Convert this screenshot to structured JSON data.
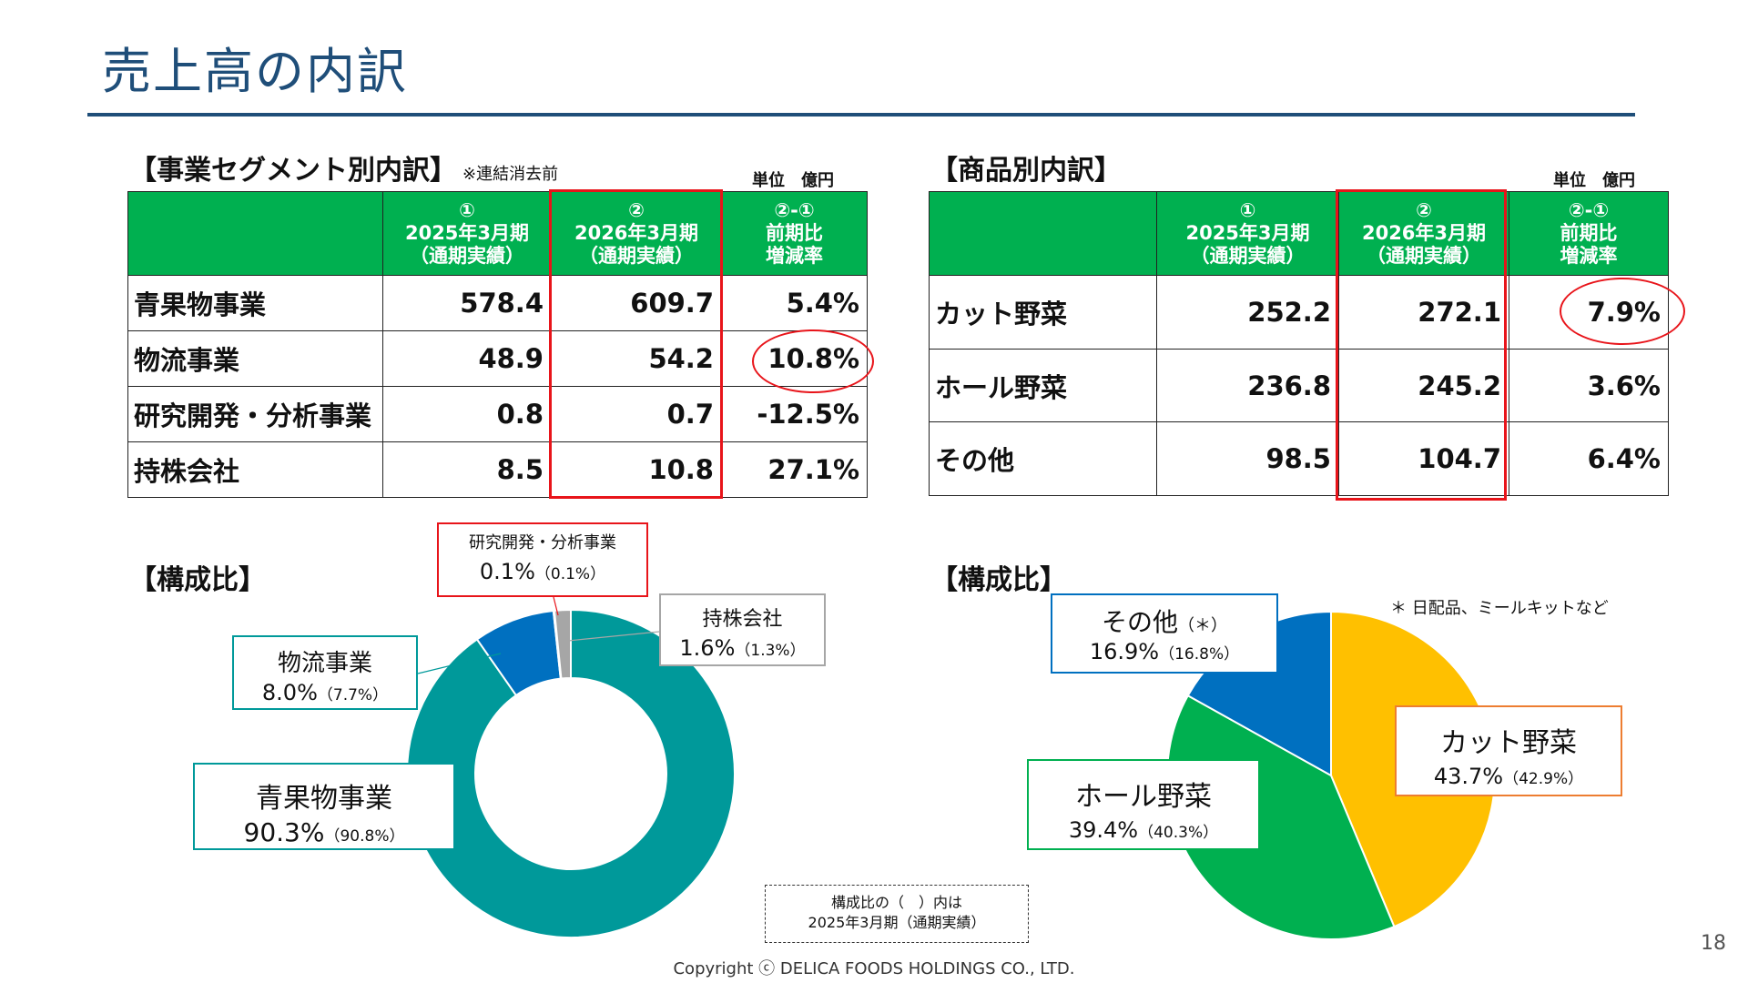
{
  "title": "売上高の内訳",
  "segment": {
    "heading": "【事業セグメント別内訳】",
    "note": "※連結消去前",
    "unit": "単位　億円",
    "columns": [
      {
        "num": "①",
        "line1": "2025年3月期",
        "line2": "（通期実績）"
      },
      {
        "num": "②",
        "line1": "2026年3月期",
        "line2": "（通期実績）"
      },
      {
        "num": "②-①",
        "line1": "前期比",
        "line2": "増減率"
      }
    ],
    "rows": [
      {
        "label": "青果物事業",
        "v1": "578.4",
        "v2": "609.7",
        "rate": "5.4%"
      },
      {
        "label": "物流事業",
        "v1": "48.9",
        "v2": "54.2",
        "rate": "10.8%"
      },
      {
        "label": "研究開発・分析事業",
        "v1": "0.8",
        "v2": "0.7",
        "rate": "-12.5%"
      },
      {
        "label": "持株会社",
        "v1": "8.5",
        "v2": "10.8",
        "rate": "27.1%"
      }
    ]
  },
  "product": {
    "heading": "【商品別内訳】",
    "unit": "単位　億円",
    "columns": [
      {
        "num": "①",
        "line1": "2025年3月期",
        "line2": "（通期実績）"
      },
      {
        "num": "②",
        "line1": "2026年3月期",
        "line2": "（通期実績）"
      },
      {
        "num": "②-①",
        "line1": "前期比",
        "line2": "増減率"
      }
    ],
    "rows": [
      {
        "label": "カット野菜",
        "v1": "252.2",
        "v2": "272.1",
        "rate": "7.9%"
      },
      {
        "label": "ホール野菜",
        "v1": "236.8",
        "v2": "245.2",
        "rate": "3.6%"
      },
      {
        "label": "その他",
        "v1": "98.5",
        "v2": "104.7",
        "rate": "6.4%"
      }
    ]
  },
  "chart_data": [
    {
      "type": "pie",
      "title": "【構成比】",
      "donut": true,
      "categories": [
        "青果物事業",
        "物流事業",
        "研究開発・分析事業",
        "持株会社"
      ],
      "values": [
        90.3,
        8.0,
        0.1,
        1.6
      ],
      "pct_labels": [
        "90.3%",
        "8.0%",
        "0.1%",
        "1.6%"
      ],
      "prev_labels": [
        "（90.8%）",
        "（7.7%）",
        "（0.1%）",
        "（1.3%）"
      ],
      "colors": [
        "#00999a",
        "#0070c0",
        "#e8141a",
        "#a6a6a6"
      ]
    },
    {
      "type": "pie",
      "title": "【構成比】",
      "donut": false,
      "categories": [
        "カット野菜",
        "ホール野菜",
        "その他"
      ],
      "values": [
        43.7,
        39.4,
        16.9
      ],
      "pct_labels": [
        "43.7%",
        "39.4%",
        "16.9%"
      ],
      "prev_labels": [
        "（42.9%）",
        "（40.3%）",
        "（16.8%）"
      ],
      "label_suffix": [
        "",
        "",
        "（＊）"
      ],
      "colors": [
        "#ffc000",
        "#00b050",
        "#0070c0"
      ]
    }
  ],
  "footnote": "＊ 日配品、ミールキットなど",
  "legend_note": {
    "line1": "構成比の（　）内は",
    "line2": "2025年3月期（通期実績）"
  },
  "copyright": "Copyright ⓒ DELICA FOODS HOLDINGS CO., LTD.",
  "page_number": "18"
}
